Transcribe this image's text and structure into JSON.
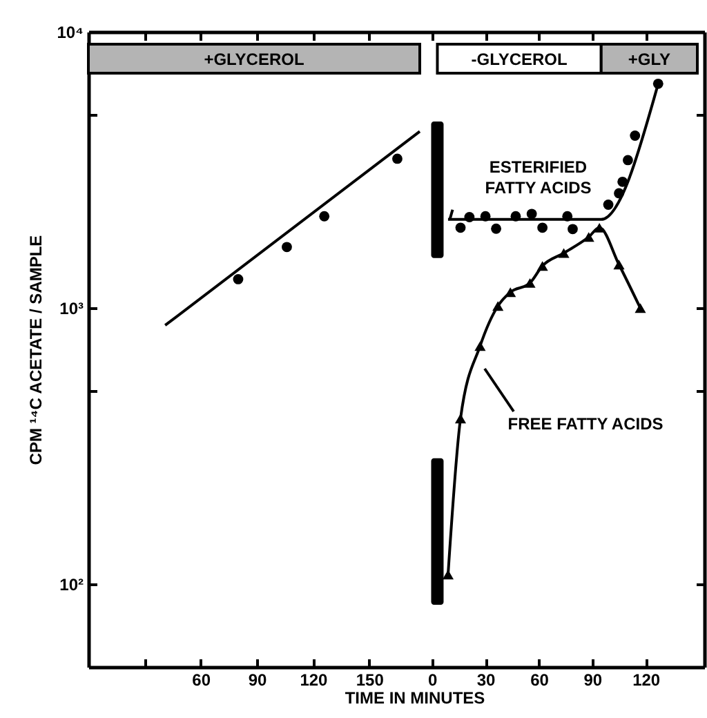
{
  "chart_data": [
    {
      "type": "scatter",
      "xlabel": "TIME IN MINUTES",
      "ylabel": "CPM ¹⁴C ACETATE / SAMPLE",
      "log": "y",
      "xlim": [
        0,
        177
      ],
      "ylim": [
        50,
        10000
      ],
      "xticks": [
        {
          "value": 30,
          "label": null
        },
        60,
        90,
        120,
        150
      ],
      "yticks": [
        {
          "value": 100,
          "label": "10²"
        },
        {
          "value": 500,
          "label": null
        },
        {
          "value": 1000,
          "label": "10³"
        },
        {
          "value": 5000,
          "label": null
        },
        {
          "value": 10000,
          "label": "10⁴"
        }
      ],
      "series": [
        {
          "type": "line",
          "color": "#000000",
          "line_style": "solid",
          "x": [
            41,
            177
          ],
          "values": [
            864,
            4354
          ]
        },
        {
          "type": "scatter",
          "color": "#000000",
          "marker": "circle",
          "x": [
            80,
            106,
            126,
            165
          ],
          "values": [
            1269,
            1660,
            2146,
            3467
          ]
        }
      ],
      "bands": [
        {
          "axis": "x",
          "from": 0,
          "to": 177,
          "label": "+GLYCEROL",
          "color": "#b4b4b4"
        }
      ]
    },
    {
      "type": "scatter",
      "log": "y",
      "xlim": [
        -3,
        149
      ],
      "ylim": [
        50,
        10000
      ],
      "xticks": [
        0,
        30,
        60,
        90,
        120
      ],
      "yticks": [
        {
          "value": 100,
          "label": null
        },
        {
          "value": 500,
          "label": null
        },
        {
          "value": 1000,
          "label": null
        },
        {
          "value": 5000,
          "label": null
        },
        {
          "value": 10000,
          "label": null
        }
      ],
      "tick_labels": "x",
      "series": [
        {
          "type": "bar",
          "color": "#000000",
          "x": [
            3,
            3
          ],
          "base": [
            1514,
            84
          ],
          "values": [
            3218,
            201
          ]
        },
        {
          "type": "scatter",
          "color": "#000000",
          "marker": "circle",
          "x": [
            16,
            21,
            30,
            36,
            47,
            56,
            62,
            76,
            79,
            99,
            105,
            107,
            110,
            114,
            127
          ],
          "values": [
            1950,
            2130,
            2146,
            1934,
            2146,
            2188,
            1950,
            2146,
            1928,
            2363,
            2600,
            2861,
            3428,
            4203,
            6479
          ]
        },
        {
          "type": "line",
          "color": "#000000",
          "line_style": "solid",
          "x": [
            9,
            95,
            127
          ],
          "values": [
            2090,
            2090,
            6479
          ]
        },
        {
          "type": "line",
          "color": "#000000",
          "marker": "triangle",
          "line_style": "solid",
          "x": [
            9,
            16,
            27,
            37,
            44,
            55,
            62,
            74,
            88,
            94,
            105,
            117
          ],
          "values": [
            108,
            397,
            727,
            1015,
            1139,
            1230,
            1418,
            1579,
            1805,
            1950,
            1434,
            997
          ]
        }
      ],
      "bands": [
        {
          "axis": "x",
          "from": 3,
          "to": 95,
          "label": "-GLYCEROL",
          "color": "#ffffff"
        },
        {
          "axis": "x",
          "from": 95,
          "to": 149,
          "label": "+GLY",
          "color": "#b4b4b4"
        }
      ],
      "annotations": [
        {
          "text": "ESTERIFIED\nFATTY ACIDS",
          "x": 10,
          "y": 2090
        },
        "FREE FATTY ACIDS"
      ]
    }
  ]
}
